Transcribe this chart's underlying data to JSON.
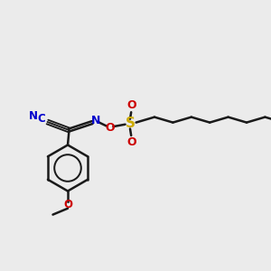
{
  "background_color": "#ebebeb",
  "bond_color": "#1a1a1a",
  "cn_color": "#0000cc",
  "n_color": "#0000cc",
  "o_color": "#cc0000",
  "s_color": "#ccaa00",
  "line_width": 1.8,
  "fig_width": 3.0,
  "fig_height": 3.0,
  "dpi": 100,
  "xlim": [
    0,
    10
  ],
  "ylim": [
    0,
    10
  ]
}
